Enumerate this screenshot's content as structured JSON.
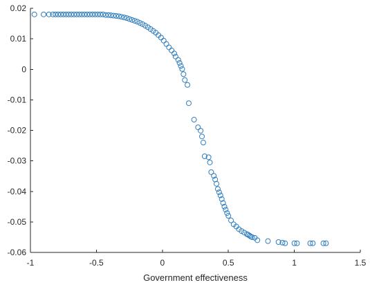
{
  "chart_data": {
    "type": "scatter",
    "title": "",
    "xlabel": "Government effectiveness",
    "ylabel": "",
    "xlim": [
      -1,
      1.5
    ],
    "ylim": [
      -0.06,
      0.02
    ],
    "xticks": [
      -1,
      -0.5,
      0,
      0.5,
      1,
      1.5
    ],
    "xtick_labels": [
      "-1",
      "-0.5",
      "0",
      "0.5",
      "1",
      "1.5"
    ],
    "yticks": [
      -0.06,
      -0.05,
      -0.04,
      -0.03,
      -0.02,
      -0.01,
      0,
      0.01,
      0.02
    ],
    "ytick_labels": [
      "-0.06",
      "-0.05",
      "-0.04",
      "-0.03",
      "-0.02",
      "-0.01",
      "0",
      "0.01",
      "0.02"
    ],
    "grid": false,
    "marker": "open-circle",
    "marker_color": "#2f7dbd",
    "series": [
      {
        "x": [
          -0.97,
          -0.9,
          -0.86,
          -0.83,
          -0.81,
          -0.79,
          -0.77,
          -0.75,
          -0.73,
          -0.71,
          -0.69,
          -0.67,
          -0.65,
          -0.63,
          -0.61,
          -0.59,
          -0.57,
          -0.55,
          -0.53,
          -0.51,
          -0.49,
          -0.47,
          -0.45,
          -0.43,
          -0.41,
          -0.39,
          -0.37,
          -0.35,
          -0.33,
          -0.31,
          -0.29,
          -0.27,
          -0.25,
          -0.23,
          -0.21,
          -0.19,
          -0.17,
          -0.15,
          -0.13,
          -0.11,
          -0.09,
          -0.07,
          -0.05,
          -0.03,
          -0.01,
          0.01,
          0.03,
          0.05,
          0.07,
          0.09,
          0.1,
          0.12,
          0.13,
          0.14,
          0.15,
          0.16,
          0.17,
          0.19,
          0.2,
          0.24,
          0.27,
          0.29,
          0.3,
          0.31,
          0.32,
          0.35,
          0.36,
          0.37,
          0.39,
          0.4,
          0.41,
          0.42,
          0.43,
          0.44,
          0.45,
          0.46,
          0.47,
          0.48,
          0.49,
          0.5,
          0.52,
          0.54,
          0.56,
          0.58,
          0.6,
          0.62,
          0.64,
          0.65,
          0.66,
          0.67,
          0.68,
          0.7,
          0.72,
          0.8,
          0.88,
          0.91,
          0.93,
          1.0,
          1.02,
          1.12,
          1.14,
          1.22,
          1.24
        ],
        "y": [
          0.018,
          0.018,
          0.018,
          0.018,
          0.018,
          0.018,
          0.018,
          0.018,
          0.018,
          0.018,
          0.018,
          0.018,
          0.018,
          0.018,
          0.018,
          0.018,
          0.018,
          0.018,
          0.018,
          0.018,
          0.018,
          0.018,
          0.018,
          0.0178,
          0.0178,
          0.0177,
          0.0176,
          0.0175,
          0.0174,
          0.0172,
          0.017,
          0.0168,
          0.0165,
          0.0162,
          0.0159,
          0.0156,
          0.0152,
          0.0148,
          0.0143,
          0.0138,
          0.0132,
          0.0126,
          0.012,
          0.0112,
          0.0104,
          0.0094,
          0.0083,
          0.0072,
          0.0062,
          0.0052,
          0.0042,
          0.0031,
          0.0021,
          0.0011,
          0.0001,
          -0.0016,
          -0.0035,
          -0.0051,
          -0.0111,
          -0.0165,
          -0.019,
          -0.0201,
          -0.022,
          -0.024,
          -0.0285,
          -0.0288,
          -0.0305,
          -0.0337,
          -0.0349,
          -0.0361,
          -0.0375,
          -0.0392,
          -0.0403,
          -0.0413,
          -0.0425,
          -0.0438,
          -0.045,
          -0.046,
          -0.0471,
          -0.048,
          -0.0495,
          -0.0508,
          -0.0515,
          -0.0524,
          -0.053,
          -0.0535,
          -0.054,
          -0.0542,
          -0.0545,
          -0.0548,
          -0.055,
          -0.0552,
          -0.056,
          -0.0563,
          -0.0566,
          -0.0568,
          -0.057,
          -0.057,
          -0.057,
          -0.057,
          -0.057,
          -0.057,
          -0.057
        ]
      }
    ]
  }
}
